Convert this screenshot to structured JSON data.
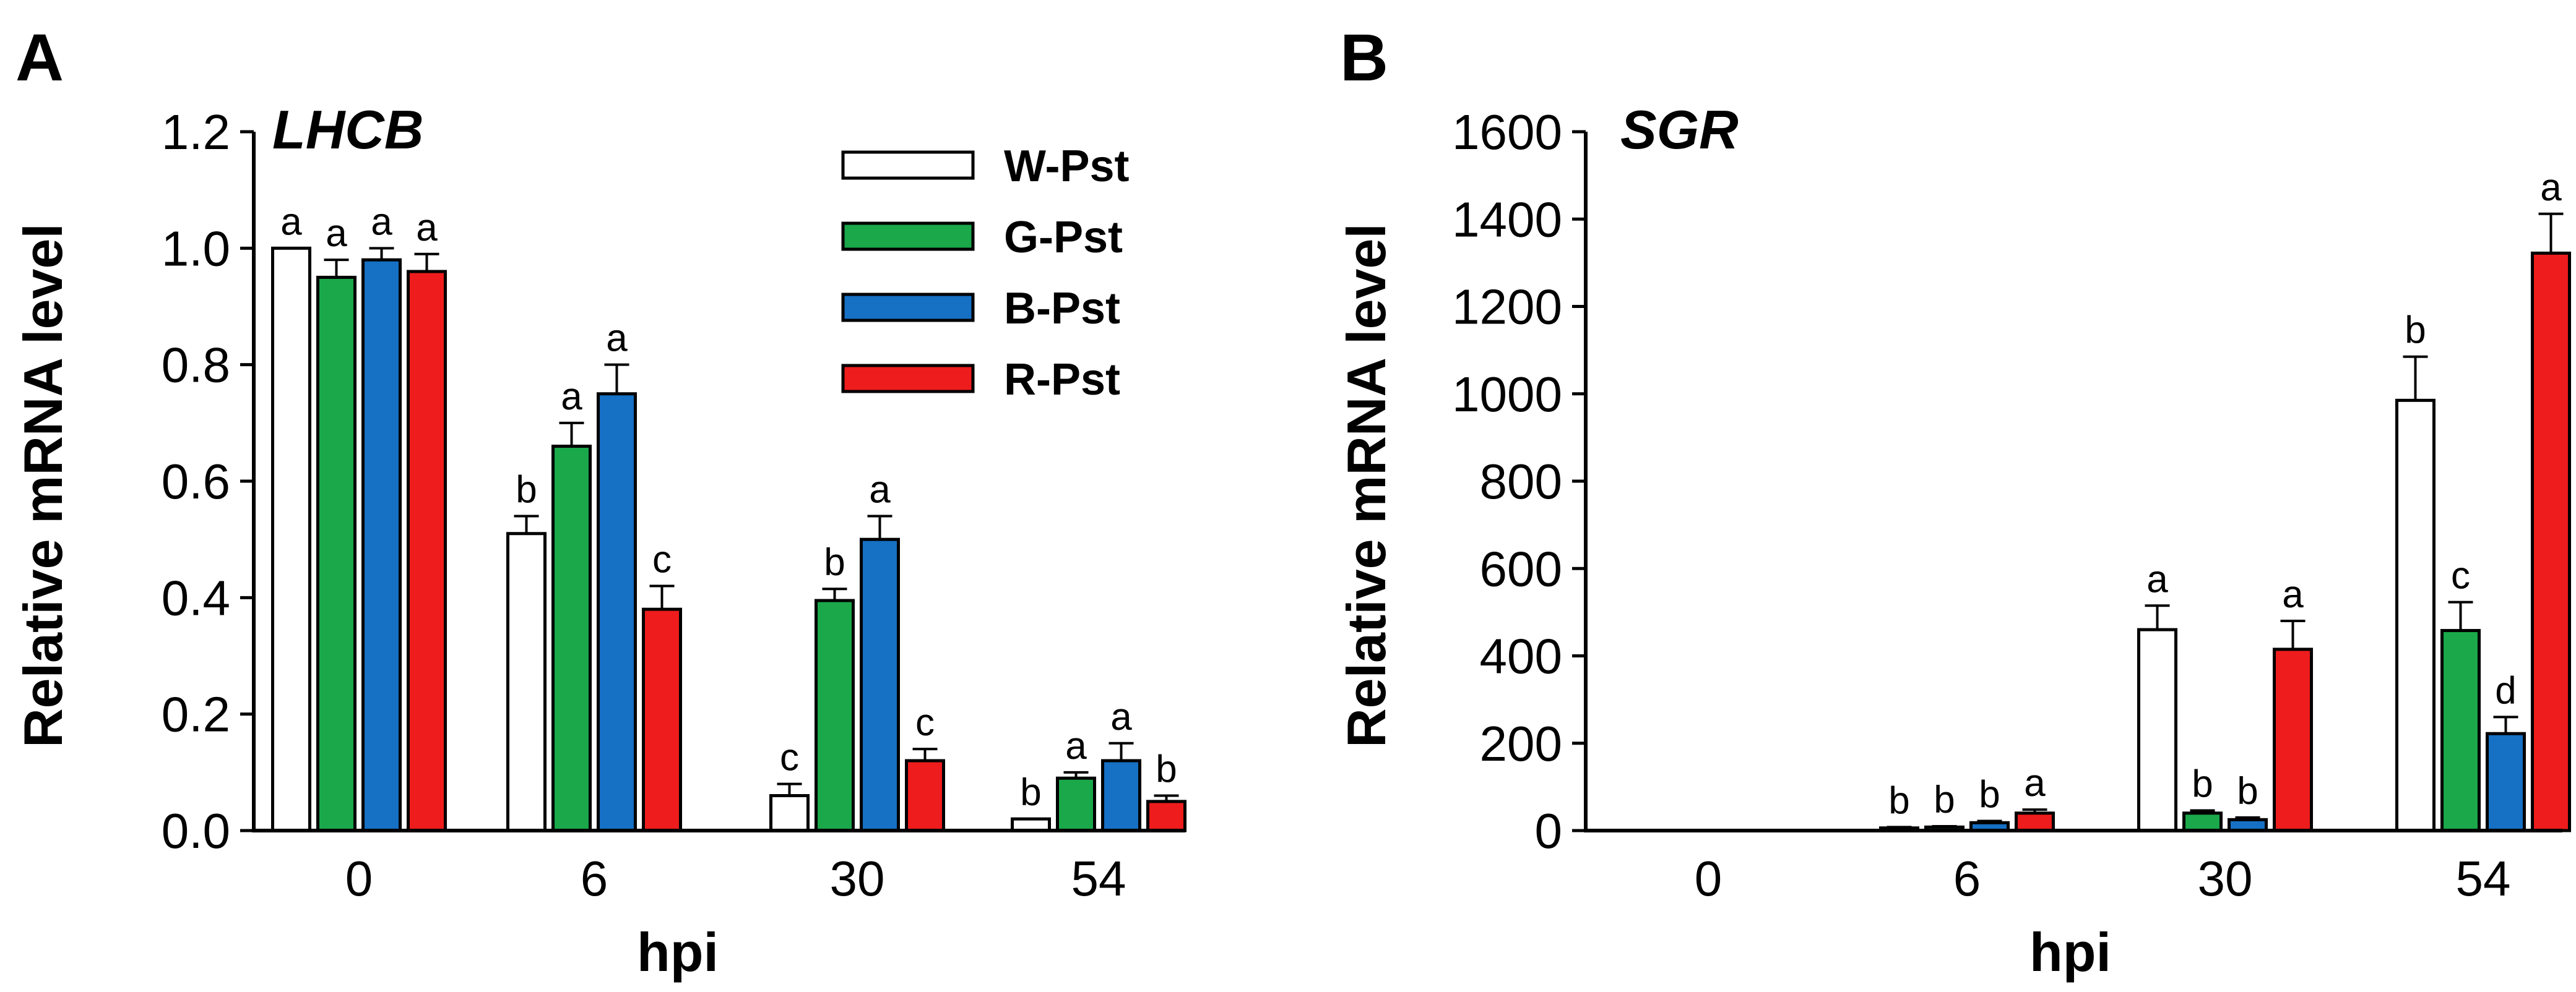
{
  "legend": {
    "series": [
      {
        "name": "W-Pst",
        "color": "#ffffff"
      },
      {
        "name": "G-Pst",
        "color": "#1aa84a"
      },
      {
        "name": "B-Pst",
        "color": "#1670c4"
      },
      {
        "name": "R-Pst",
        "color": "#ee1c1c"
      }
    ]
  },
  "chart_data": [
    {
      "type": "bar",
      "panel": "A",
      "title": "LHCB",
      "xlabel": "hpi",
      "ylabel": "Relative mRNA level",
      "categories": [
        "0",
        "6",
        "30",
        "54"
      ],
      "ylim": [
        0,
        1.2
      ],
      "yticks": [
        "0.0",
        "0.2",
        "0.4",
        "0.6",
        "0.8",
        "1.0",
        "1.2"
      ],
      "series": [
        {
          "name": "W-Pst",
          "color": "#ffffff",
          "values": [
            1.0,
            0.51,
            0.06,
            0.02
          ],
          "errors": [
            0,
            0.03,
            0.02,
            0
          ],
          "letters": [
            "a",
            "b",
            "c",
            "b"
          ]
        },
        {
          "name": "G-Pst",
          "color": "#1aa84a",
          "values": [
            0.95,
            0.66,
            0.395,
            0.09
          ],
          "errors": [
            0.03,
            0.04,
            0.02,
            0.01
          ],
          "letters": [
            "a",
            "a",
            "b",
            "a"
          ]
        },
        {
          "name": "B-Pst",
          "color": "#1670c4",
          "values": [
            0.98,
            0.75,
            0.5,
            0.12
          ],
          "errors": [
            0.02,
            0.05,
            0.04,
            0.03
          ],
          "letters": [
            "a",
            "a",
            "a",
            "a"
          ]
        },
        {
          "name": "R-Pst",
          "color": "#ee1c1c",
          "values": [
            0.96,
            0.38,
            0.12,
            0.05
          ],
          "errors": [
            0.03,
            0.04,
            0.02,
            0.01
          ],
          "letters": [
            "a",
            "c",
            "c",
            "b"
          ]
        }
      ]
    },
    {
      "type": "bar",
      "panel": "B",
      "title": "SGR",
      "xlabel": "hpi",
      "ylabel": "Relative mRNA level",
      "categories": [
        "0",
        "6",
        "30",
        "54"
      ],
      "ylim": [
        0,
        1600
      ],
      "yticks": [
        "0",
        "200",
        "400",
        "600",
        "800",
        "1000",
        "1200",
        "1400",
        "1600"
      ],
      "series": [
        {
          "name": "W-Pst",
          "color": "#ffffff",
          "values": [
            0,
            6,
            460,
            985
          ],
          "errors": [
            0,
            2,
            55,
            100
          ],
          "letters": [
            "",
            "b",
            "a",
            "b"
          ]
        },
        {
          "name": "G-Pst",
          "color": "#1aa84a",
          "values": [
            0,
            8,
            40,
            458
          ],
          "errors": [
            0,
            2,
            6,
            65
          ],
          "letters": [
            "",
            "b",
            "b",
            "c"
          ]
        },
        {
          "name": "B-Pst",
          "color": "#1670c4",
          "values": [
            0,
            18,
            25,
            222
          ],
          "errors": [
            0,
            4,
            5,
            38
          ],
          "letters": [
            "",
            "b",
            "b",
            "d"
          ]
        },
        {
          "name": "R-Pst",
          "color": "#ee1c1c",
          "values": [
            0,
            40,
            415,
            1322
          ],
          "errors": [
            0,
            8,
            65,
            90
          ],
          "letters": [
            "",
            "a",
            "a",
            "a"
          ]
        }
      ]
    }
  ]
}
